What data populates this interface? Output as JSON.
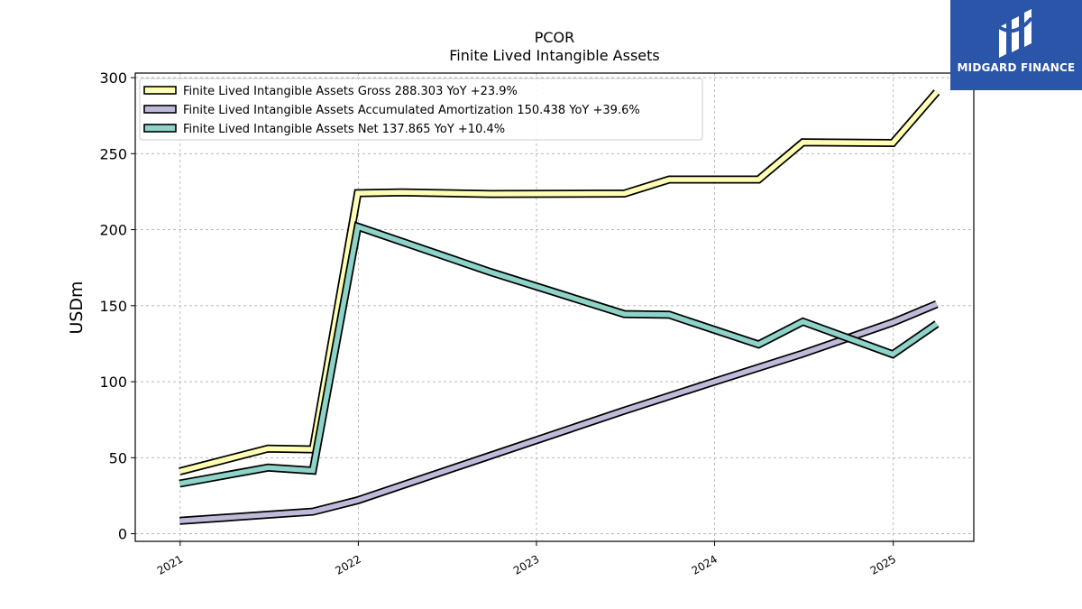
{
  "logo": {
    "text": "MIDGARD FINANCE"
  },
  "chart_data": {
    "type": "line",
    "title": "PCOR",
    "subtitle": "Finite Lived Intangible Assets",
    "xlabel": "",
    "ylabel": "USDm",
    "ylim": [
      -5,
      303
    ],
    "xlim": [
      "2020-10-01",
      "2025-06-15"
    ],
    "yticks": [
      0,
      50,
      100,
      150,
      200,
      250,
      300
    ],
    "xticks": [
      "2021",
      "2022",
      "2023",
      "2024",
      "2025"
    ],
    "grid": true,
    "legend_position": "top-left",
    "series": [
      {
        "name": "Finite Lived Intangible Assets Gross",
        "legend": "Finite Lived Intangible Assets Gross  288.303 YoY +23.9%",
        "color": "#ffffb3",
        "points": [
          [
            "2020-12-31",
            41
          ],
          [
            "2021-06-30",
            56
          ],
          [
            "2021-09-30",
            55.5
          ],
          [
            "2021-12-31",
            224
          ],
          [
            "2022-03-31",
            224.5
          ],
          [
            "2022-09-30",
            223.5
          ],
          [
            "2023-06-30",
            223.8
          ],
          [
            "2023-09-30",
            233
          ],
          [
            "2024-03-31",
            233
          ],
          [
            "2024-06-30",
            257.5
          ],
          [
            "2024-12-31",
            257
          ],
          [
            "2025-03-31",
            290.5
          ]
        ]
      },
      {
        "name": "Finite Lived Intangible Assets Accumulated Amortization",
        "legend": "Finite Lived Intangible Assets Accumulated Amortization  150.438 YoY +39.6%",
        "color": "#bebada",
        "points": [
          [
            "2020-12-31",
            8.5
          ],
          [
            "2021-06-30",
            12.5
          ],
          [
            "2021-09-30",
            14.5
          ],
          [
            "2021-12-31",
            22
          ],
          [
            "2022-09-30",
            51.5
          ],
          [
            "2023-06-30",
            81
          ],
          [
            "2023-12-31",
            100
          ],
          [
            "2024-06-30",
            118.5
          ],
          [
            "2024-12-31",
            139
          ],
          [
            "2025-03-31",
            151
          ]
        ]
      },
      {
        "name": "Finite Lived Intangible Assets Net",
        "legend": "Finite Lived Intangible Assets Net  137.865 YoY +10.4%",
        "color": "#8dd3c7",
        "points": [
          [
            "2020-12-31",
            33
          ],
          [
            "2021-06-30",
            43.5
          ],
          [
            "2021-09-30",
            41.5
          ],
          [
            "2021-12-31",
            202
          ],
          [
            "2022-09-30",
            172
          ],
          [
            "2023-06-30",
            144.5
          ],
          [
            "2023-09-30",
            144
          ],
          [
            "2024-03-31",
            124.5
          ],
          [
            "2024-06-30",
            139.5
          ],
          [
            "2024-12-31",
            118
          ],
          [
            "2025-03-31",
            138
          ]
        ]
      }
    ]
  }
}
